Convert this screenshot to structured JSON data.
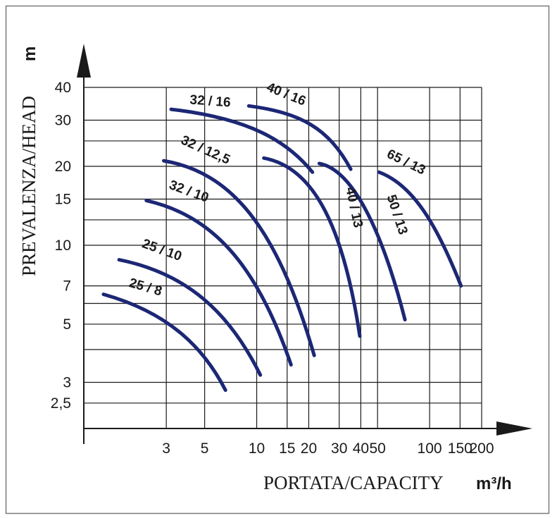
{
  "chart_data": {
    "type": "line",
    "title": "",
    "xlabel": "PORTATA/CAPACITY",
    "xunit": "m³/h",
    "ylabel": "PREVALENZA/HEAD",
    "yunit": "m",
    "xscale": "log",
    "yscale": "log",
    "xlim": [
      1,
      200
    ],
    "ylim": [
      2.0,
      40
    ],
    "x_ticks": [
      {
        "value": 3,
        "label": "3"
      },
      {
        "value": 5,
        "label": "5"
      },
      {
        "value": 10,
        "label": "10"
      },
      {
        "value": 15,
        "label": "15"
      },
      {
        "value": 20,
        "label": "20"
      },
      {
        "value": 30,
        "label": "30"
      },
      {
        "value": 40,
        "label": "40"
      },
      {
        "value": 50,
        "label": "50"
      },
      {
        "value": 100,
        "label": "100"
      },
      {
        "value": 150,
        "label": "150"
      },
      {
        "value": 200,
        "label": "200"
      }
    ],
    "y_ticks": [
      {
        "value": 2.5,
        "label": "2,5"
      },
      {
        "value": 3,
        "label": "3"
      },
      {
        "value": 5,
        "label": "5"
      },
      {
        "value": 7,
        "label": "7"
      },
      {
        "value": 10,
        "label": "10"
      },
      {
        "value": 15,
        "label": "15"
      },
      {
        "value": 20,
        "label": "20"
      },
      {
        "value": 30,
        "label": "30"
      },
      {
        "value": 40,
        "label": "40"
      }
    ],
    "x_grid": [
      3,
      5,
      10,
      15,
      20,
      30,
      40,
      50,
      100,
      150,
      200
    ],
    "y_grid": [
      2.5,
      3,
      4,
      5,
      6,
      7,
      10,
      12.5,
      15,
      20,
      25,
      30,
      40
    ],
    "series": [
      {
        "name": "25 / 8",
        "points": [
          [
            1.3,
            6.5
          ],
          [
            3.2,
            5.5
          ],
          [
            5.0,
            4.0
          ],
          [
            6.6,
            2.8
          ]
        ]
      },
      {
        "name": "25 / 10",
        "points": [
          [
            1.6,
            8.8
          ],
          [
            4.0,
            7.8
          ],
          [
            7.0,
            5.5
          ],
          [
            10.5,
            3.2
          ]
        ]
      },
      {
        "name": "32 / 10",
        "points": [
          [
            2.3,
            14.8
          ],
          [
            5.5,
            13.0
          ],
          [
            10.0,
            8.5
          ],
          [
            15.8,
            3.5
          ]
        ]
      },
      {
        "name": "32 / 12,5",
        "points": [
          [
            2.9,
            21.0
          ],
          [
            7.0,
            19.0
          ],
          [
            13.0,
            12.0
          ],
          [
            21.5,
            3.8
          ]
        ]
      },
      {
        "name": "32 / 16",
        "points": [
          [
            3.2,
            33.0
          ],
          [
            9.0,
            30.5
          ],
          [
            15.0,
            25.0
          ],
          [
            21.0,
            19.0
          ]
        ]
      },
      {
        "name": "40 / 16",
        "points": [
          [
            9.0,
            34.0
          ],
          [
            18.0,
            32.0
          ],
          [
            26.0,
            28.0
          ],
          [
            35.0,
            19.5
          ]
        ]
      },
      {
        "name": "40 / 13",
        "points": [
          [
            11.0,
            21.5
          ],
          [
            20.0,
            20.0
          ],
          [
            31.0,
            13.0
          ],
          [
            39.5,
            4.5
          ]
        ]
      },
      {
        "name": "50 / 13",
        "points": [
          [
            23.0,
            20.5
          ],
          [
            35.0,
            19.5
          ],
          [
            52.0,
            12.0
          ],
          [
            72.0,
            5.2
          ]
        ]
      },
      {
        "name": "65 / 13",
        "points": [
          [
            51.0,
            19.0
          ],
          [
            80.0,
            17.0
          ],
          [
            110.0,
            12.0
          ],
          [
            152.0,
            7.0
          ]
        ]
      }
    ]
  },
  "colors": {
    "curve": "#1c2775",
    "grid": "#1a1a1a",
    "frame": "#7a7a7a"
  }
}
